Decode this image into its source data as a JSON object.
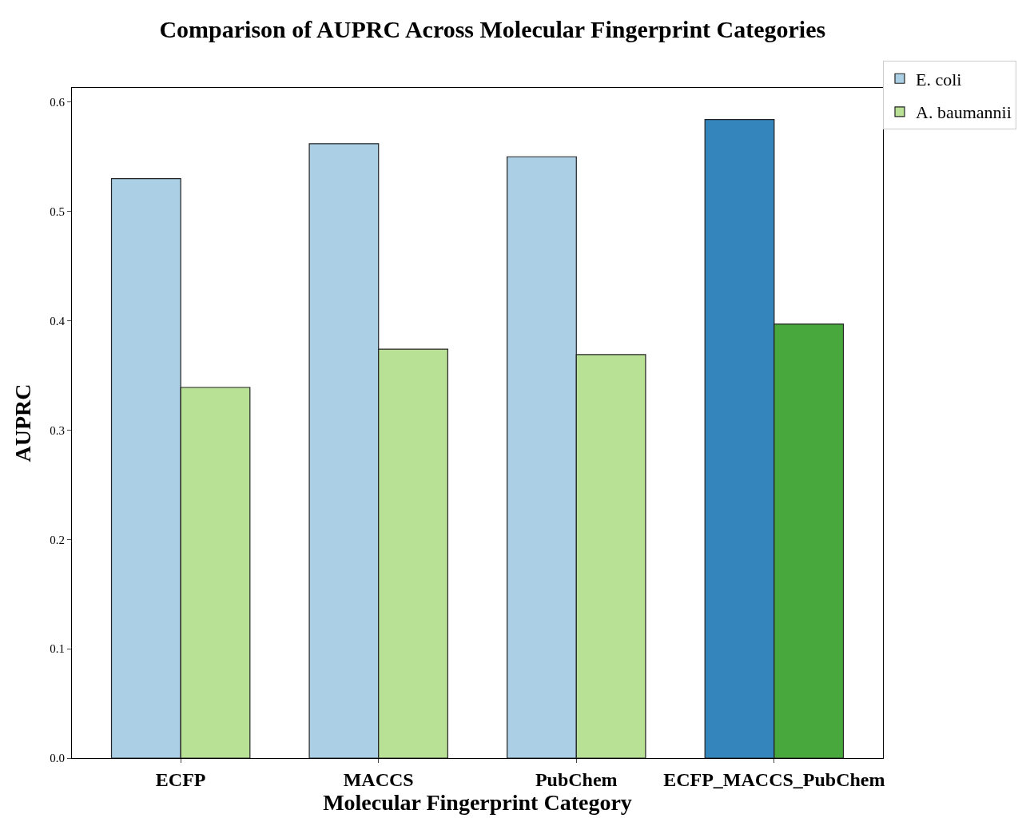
{
  "chart_data": {
    "type": "bar",
    "title": "Comparison of AUPRC Across Molecular Fingerprint Categories",
    "xlabel": "Molecular Fingerprint Category",
    "ylabel": "AUPRC",
    "categories": [
      "ECFP",
      "MACCS",
      "PubChem",
      "ECFP_MACCS_PubChem"
    ],
    "series": [
      {
        "name": "E. coli",
        "color": "#abd0e6",
        "colors": [
          "#abd0e6",
          "#abd0e6",
          "#abd0e6",
          "#3485bc"
        ],
        "values": [
          0.53,
          0.562,
          0.55,
          0.584
        ]
      },
      {
        "name": "A. baumannii",
        "color": "#b9e196",
        "colors": [
          "#b9e196",
          "#b9e196",
          "#b9e196",
          "#48a83e"
        ],
        "values": [
          0.339,
          0.374,
          0.369,
          0.397
        ]
      }
    ],
    "ylim": [
      0,
      0.613
    ],
    "yticks": [
      {
        "value": 0,
        "label": "0.0"
      },
      0.1,
      0.2,
      0.3,
      0.4,
      0.5,
      0.6
    ],
    "legend": "top right"
  }
}
